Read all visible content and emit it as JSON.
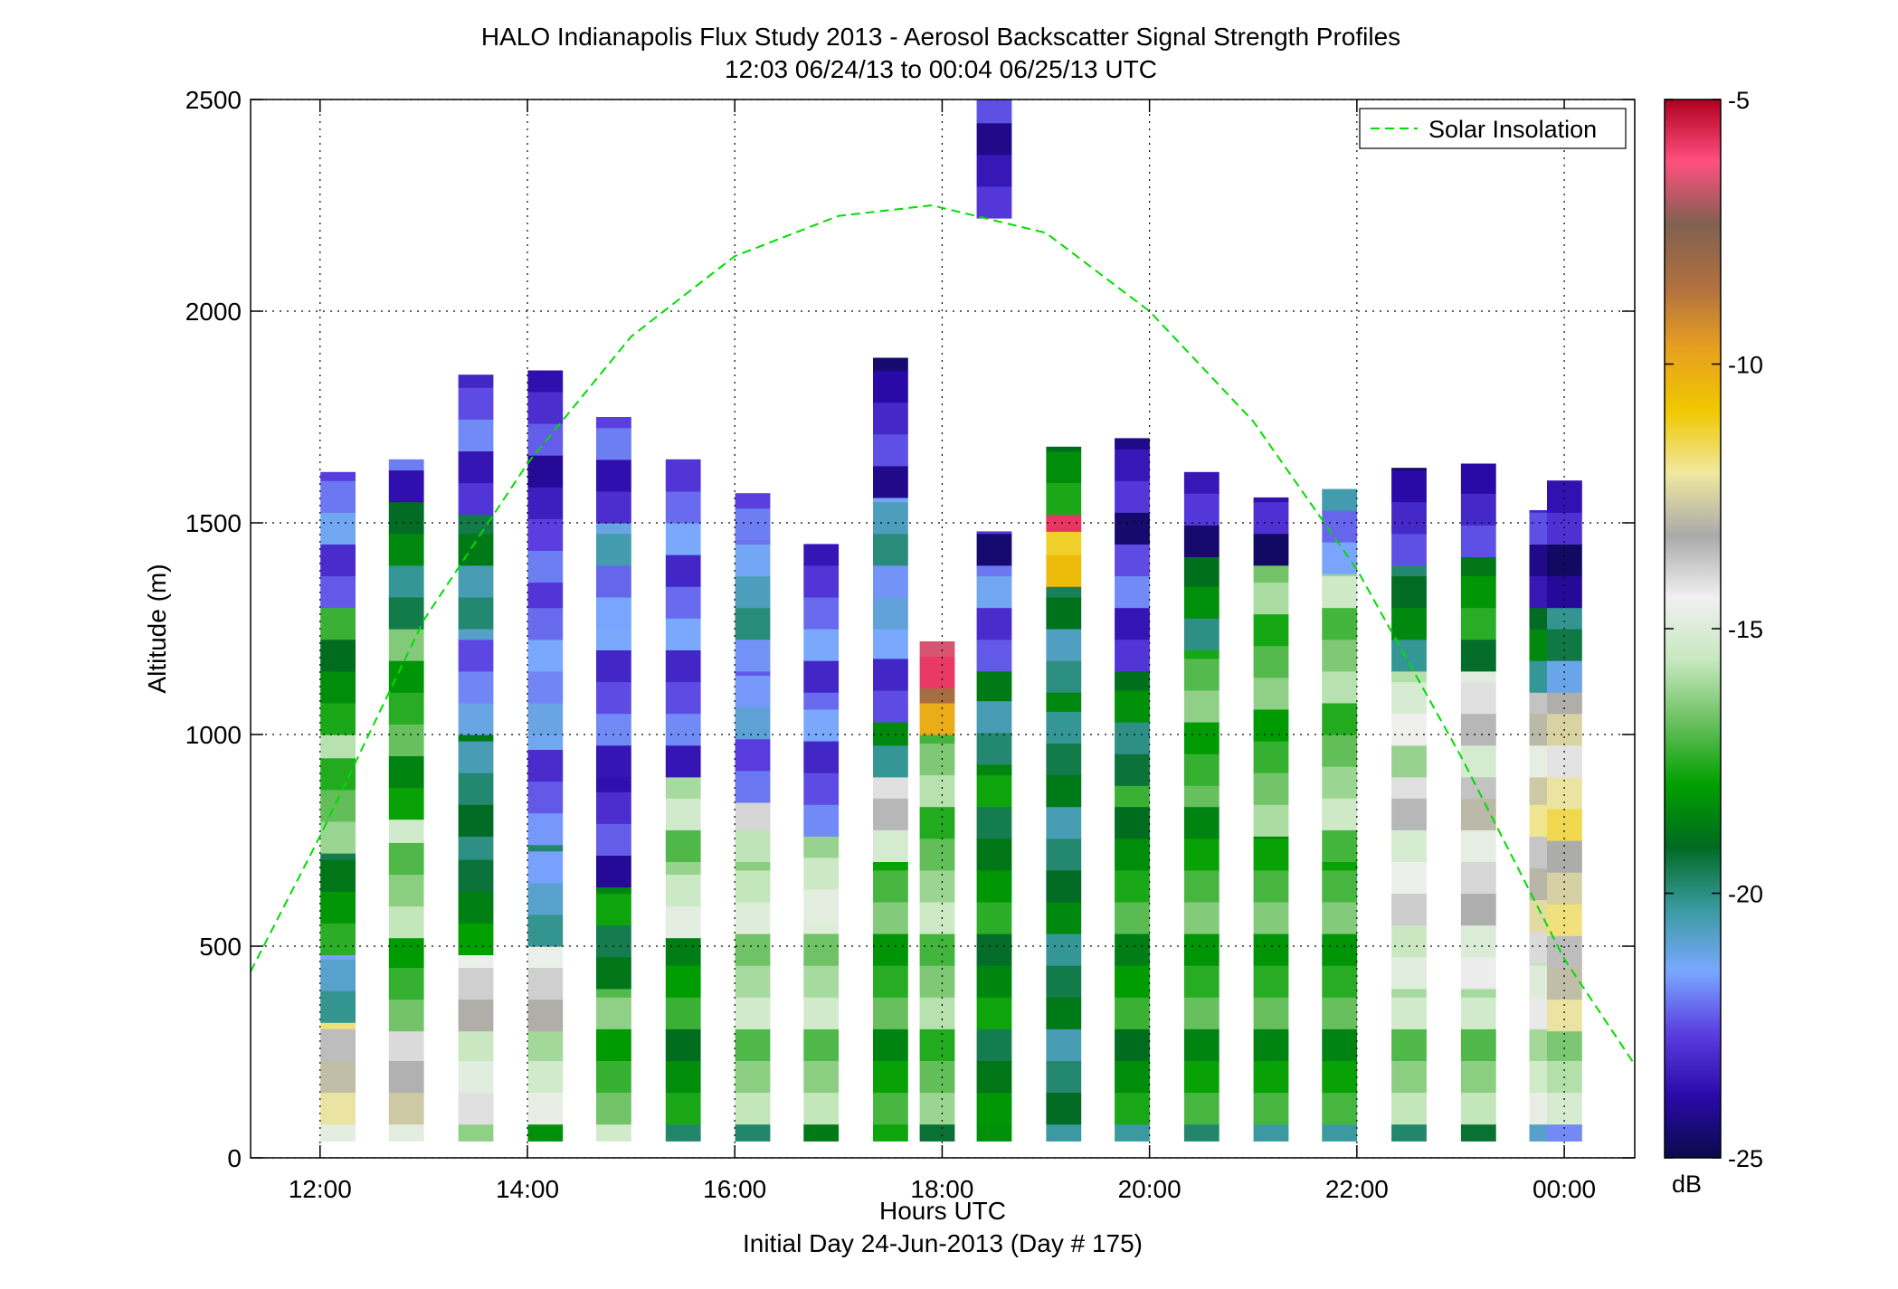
{
  "chart_data": {
    "type": "heatmap",
    "title": "HALO Indianapolis Flux Study 2013 - Aerosol Backscatter Signal Strength Profiles",
    "subtitle": "12:03 06/24/13 to 00:04 06/25/13  UTC",
    "xlabel": "Hours UTC",
    "xlabel2": "Initial Day 24-Jun-2013 (Day # 175)",
    "ylabel": "Altitude (m)",
    "x_unit": "hours",
    "xlim": [
      11.33,
      24.68
    ],
    "ylim": [
      0,
      2500
    ],
    "x_ticks": [
      12,
      14,
      16,
      18,
      20,
      22,
      24
    ],
    "x_tick_labels": [
      "12:00",
      "14:00",
      "16:00",
      "18:00",
      "20:00",
      "22:00",
      "00:00"
    ],
    "y_ticks": [
      0,
      500,
      1000,
      1500,
      2000,
      2500
    ],
    "y_tick_labels": [
      "0",
      "500",
      "1000",
      "1500",
      "2000",
      "2500"
    ],
    "grid": true,
    "legend": {
      "position": "top-right",
      "entries": [
        "Solar Insolation"
      ]
    },
    "colorbar": {
      "label": "dB",
      "range": [
        -25,
        -5
      ],
      "ticks": [
        -25,
        -20,
        -15,
        -10,
        -5
      ],
      "tick_labels": [
        "-25",
        "-20",
        "-15",
        "-10",
        "-5"
      ],
      "colors": [
        "#0a0a4a",
        "#2a0aa8",
        "#5a3ee0",
        "#7aa8ff",
        "#3a9aa0",
        "#006a20",
        "#00a000",
        "#6ac060",
        "#c8e8c0",
        "#f0f0f0",
        "#aaaaaa",
        "#f0e8a0",
        "#f0c800",
        "#e8a020",
        "#b07040",
        "#806050",
        "#ff5080",
        "#b00020"
      ]
    },
    "series": [
      {
        "name": "Solar Insolation",
        "type": "line",
        "color": "#00dd00",
        "style": "dashed",
        "x": [
          11.33,
          12.0,
          13.0,
          14.0,
          15.0,
          16.0,
          17.0,
          17.9,
          19.0,
          20.0,
          21.0,
          22.0,
          23.0,
          24.0,
          24.68
        ],
        "y": [
          440,
          760,
          1270,
          1640,
          1940,
          2130,
          2225,
          2250,
          2185,
          2000,
          1740,
          1390,
          950,
          470,
          220
        ]
      }
    ],
    "backscatter_cells": {
      "time_step_hours": 0.333,
      "altitude_step_m": 75,
      "profiles": [
        {
          "t": 12.17,
          "bands": [
            [
              40,
              80,
              -15.5
            ],
            [
              80,
              320,
              -12.5
            ],
            [
              320,
              480,
              -20.5
            ],
            [
              480,
              720,
              -18.5
            ],
            [
              720,
              1000,
              -16.5
            ],
            [
              1000,
              1300,
              -18.0
            ],
            [
              1300,
              1620,
              -22.0
            ]
          ]
        },
        {
          "t": 12.83,
          "bands": [
            [
              40,
              80,
              -15.5
            ],
            [
              80,
              300,
              -13.0
            ],
            [
              300,
              520,
              -17.0
            ],
            [
              520,
              800,
              -16.0
            ],
            [
              800,
              1250,
              -17.5
            ],
            [
              1250,
              1550,
              -19.5
            ],
            [
              1550,
              1650,
              -23.0
            ]
          ]
        },
        {
          "t": 13.5,
          "bands": [
            [
              40,
              80,
              -17.0
            ],
            [
              80,
              300,
              -14.5
            ],
            [
              300,
              480,
              -13.5
            ],
            [
              480,
              760,
              -19.0
            ],
            [
              760,
              1000,
              -19.5
            ],
            [
              1000,
              1250,
              -21.5
            ],
            [
              1250,
              1520,
              -19.5
            ],
            [
              1520,
              1850,
              -22.5
            ]
          ]
        },
        {
          "t": 14.17,
          "bands": [
            [
              40,
              80,
              -19.0
            ],
            [
              80,
              300,
              -15.0
            ],
            [
              300,
              500,
              -13.5
            ],
            [
              500,
              740,
              -20.5
            ],
            [
              740,
              1000,
              -22.0
            ],
            [
              1000,
              1150,
              -21.5
            ],
            [
              1150,
              1360,
              -22.5
            ],
            [
              1360,
              1860,
              -23.0
            ]
          ]
        },
        {
          "t": 14.83,
          "bands": [
            [
              40,
              80,
              -16.0
            ],
            [
              80,
              400,
              -17.0
            ],
            [
              400,
              640,
              -18.5
            ],
            [
              640,
              900,
              -23.0
            ],
            [
              900,
              1250,
              -22.5
            ],
            [
              1250,
              1500,
              -21.5
            ],
            [
              1500,
              1750,
              -23.0
            ]
          ]
        },
        {
          "t": 15.5,
          "bands": [
            [
              40,
              80,
              -20.5
            ],
            [
              80,
              520,
              -18.0
            ],
            [
              520,
              700,
              -15.5
            ],
            [
              700,
              900,
              -16.0
            ],
            [
              900,
              1350,
              -22.5
            ],
            [
              1350,
              1650,
              -22.5
            ]
          ]
        },
        {
          "t": 16.17,
          "bands": [
            [
              40,
              80,
              -20.5
            ],
            [
              80,
              700,
              -16.0
            ],
            [
              700,
              840,
              -15.0
            ],
            [
              840,
              1150,
              -22.0
            ],
            [
              1150,
              1460,
              -21.0
            ],
            [
              1460,
              1570,
              -23.0
            ]
          ]
        },
        {
          "t": 16.83,
          "bands": [
            [
              40,
              80,
              -19.5
            ],
            [
              80,
              560,
              -16.0
            ],
            [
              560,
              760,
              -15.5
            ],
            [
              760,
              1100,
              -22.5
            ],
            [
              1100,
              1450,
              -22.5
            ]
          ]
        },
        {
          "t": 17.5,
          "bands": [
            [
              40,
              80,
              -18.5
            ],
            [
              80,
              700,
              -17.5
            ],
            [
              700,
              900,
              -14.5
            ],
            [
              900,
              1030,
              -19.5
            ],
            [
              1030,
              1250,
              -22.5
            ],
            [
              1250,
              1560,
              -21.0
            ],
            [
              1560,
              1890,
              -23.5
            ]
          ]
        },
        {
          "t": 17.95,
          "bands": [
            [
              40,
              80,
              -20.0
            ],
            [
              80,
              1000,
              -16.5
            ],
            [
              1000,
              1110,
              -9.0
            ],
            [
              1110,
              1220,
              -5.5
            ]
          ]
        },
        {
          "t": 18.5,
          "bands": [
            [
              40,
              80,
              -19.0
            ],
            [
              80,
              930,
              -18.5
            ],
            [
              930,
              1150,
              -19.5
            ],
            [
              1150,
              1400,
              -22.0
            ],
            [
              1400,
              1480,
              -23.5
            ],
            [
              2220,
              2500,
              -23.5
            ]
          ]
        },
        {
          "t": 19.17,
          "bands": [
            [
              40,
              80,
              -21.0
            ],
            [
              80,
              1100,
              -19.5
            ],
            [
              1100,
              1350,
              -20.0
            ],
            [
              1350,
              1480,
              -10.5
            ],
            [
              1480,
              1520,
              -6.5
            ],
            [
              1520,
              1680,
              -18.0
            ]
          ]
        },
        {
          "t": 19.83,
          "bands": [
            [
              40,
              80,
              -21.0
            ],
            [
              80,
              880,
              -18.0
            ],
            [
              880,
              1150,
              -19.0
            ],
            [
              1150,
              1450,
              -22.5
            ],
            [
              1450,
              1700,
              -23.5
            ]
          ]
        },
        {
          "t": 20.5,
          "bands": [
            [
              40,
              80,
              -20.5
            ],
            [
              80,
              880,
              -17.5
            ],
            [
              880,
              1200,
              -17.0
            ],
            [
              1200,
              1420,
              -19.0
            ],
            [
              1420,
              1620,
              -23.5
            ]
          ]
        },
        {
          "t": 21.17,
          "bands": [
            [
              40,
              80,
              -21.0
            ],
            [
              80,
              760,
              -17.5
            ],
            [
              760,
              1400,
              -17.0
            ],
            [
              1400,
              1560,
              -24.0
            ]
          ]
        },
        {
          "t": 21.83,
          "bands": [
            [
              40,
              80,
              -21.0
            ],
            [
              80,
              700,
              -17.5
            ],
            [
              700,
              1380,
              -16.5
            ],
            [
              1380,
              1580,
              -21.5
            ]
          ]
        },
        {
          "t": 22.5,
          "bands": [
            [
              40,
              80,
              -20.5
            ],
            [
              80,
              400,
              -16.0
            ],
            [
              400,
              900,
              -14.5
            ],
            [
              900,
              1150,
              -15.5
            ],
            [
              1150,
              1400,
              -19.5
            ],
            [
              1400,
              1630,
              -23.5
            ]
          ]
        },
        {
          "t": 23.17,
          "bands": [
            [
              40,
              80,
              -20.0
            ],
            [
              80,
              400,
              -16.0
            ],
            [
              400,
              900,
              -14.0
            ],
            [
              900,
              1150,
              -14.5
            ],
            [
              1150,
              1420,
              -18.5
            ],
            [
              1420,
              1640,
              -23.5
            ]
          ]
        },
        {
          "t": 23.83,
          "bands": [
            [
              40,
              80,
              -21.5
            ],
            [
              80,
              460,
              -15.0
            ],
            [
              460,
              900,
              -13.0
            ],
            [
              900,
              1100,
              -14.0
            ],
            [
              1100,
              1300,
              -19.5
            ],
            [
              1300,
              1530,
              -23.5
            ]
          ]
        },
        {
          "t": 24.0,
          "bands": [
            [
              40,
              80,
              -22.5
            ],
            [
              80,
              300,
              -15.5
            ],
            [
              300,
              900,
              -12.5
            ],
            [
              900,
              1100,
              -13.5
            ],
            [
              1100,
              1300,
              -20.5
            ],
            [
              1300,
              1600,
              -24.0
            ]
          ]
        }
      ]
    }
  }
}
